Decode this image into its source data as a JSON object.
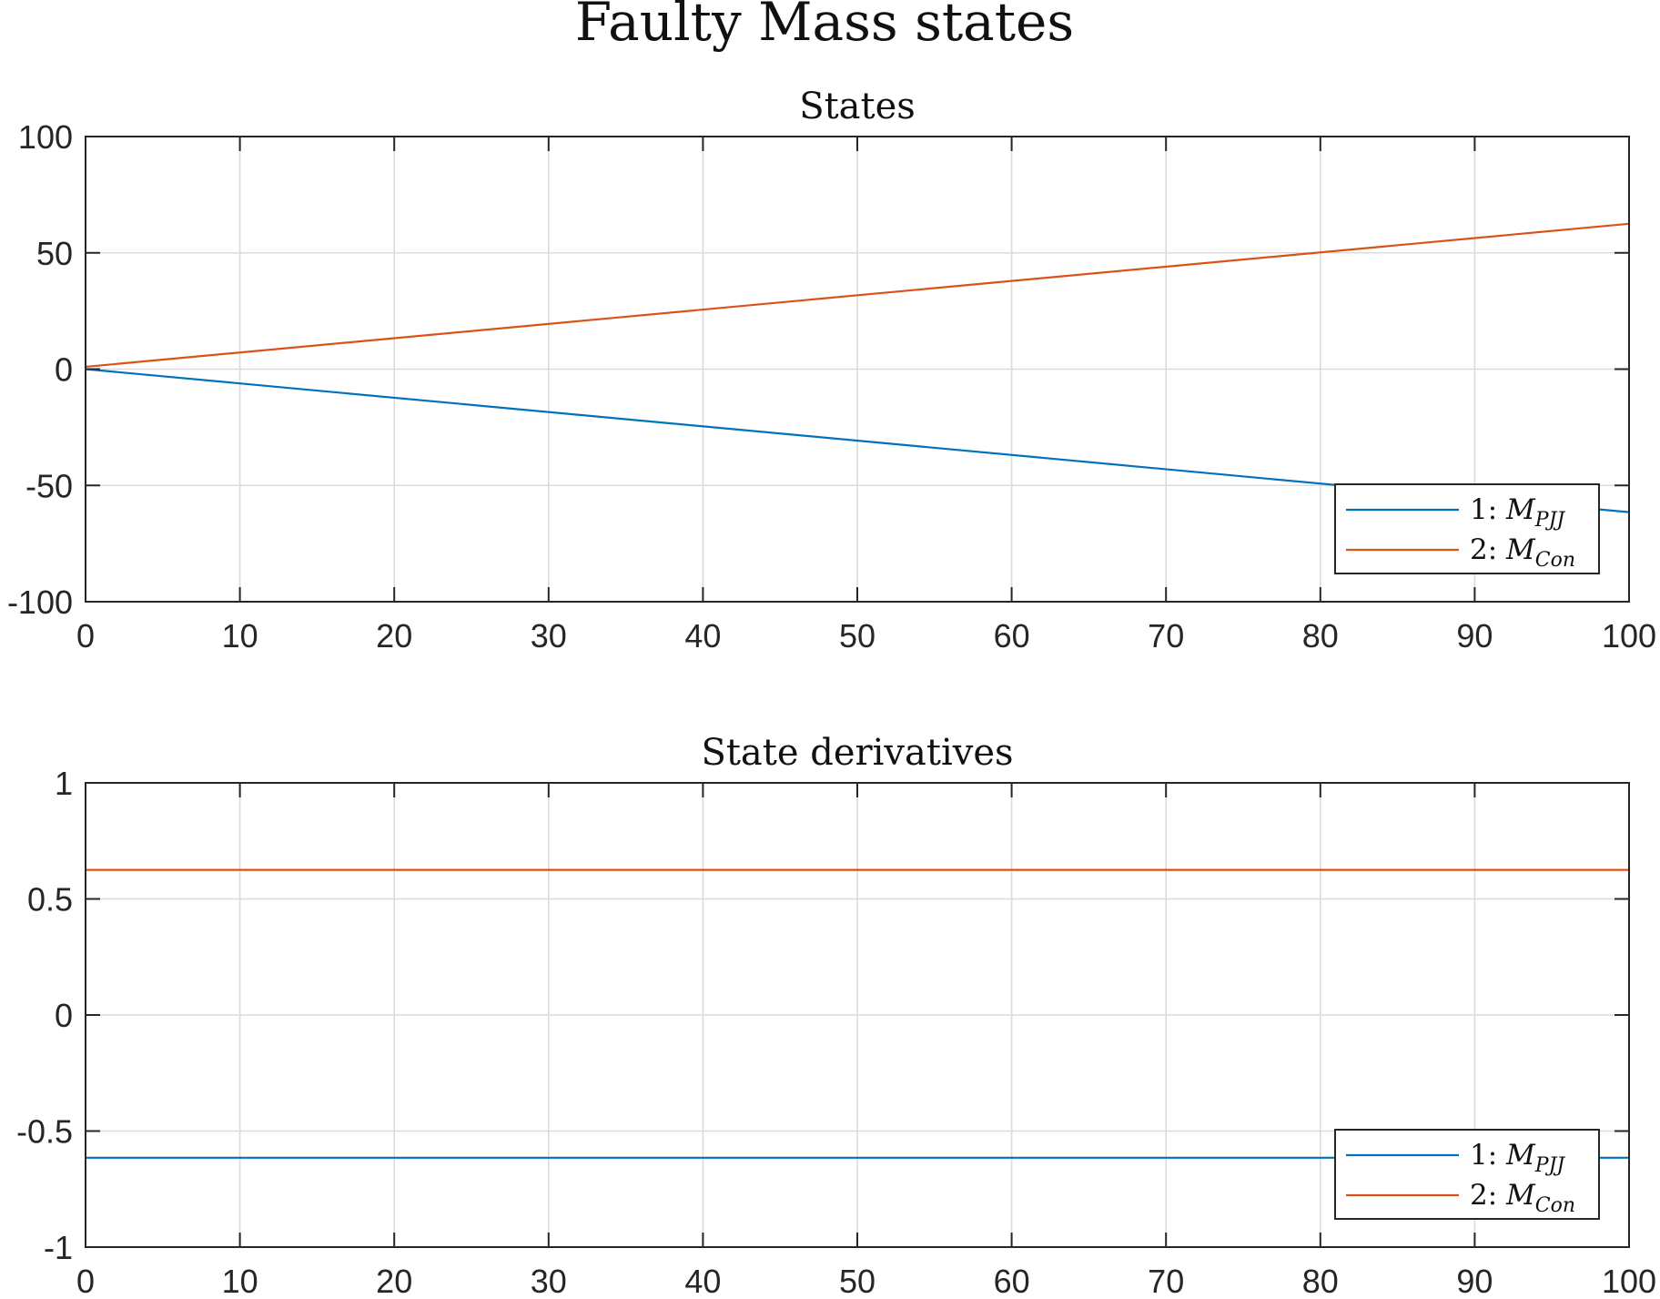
{
  "figure_title": "Faulty Mass states",
  "colors": {
    "series1": "#0072BD",
    "series2": "#D95319"
  },
  "chart_data": [
    {
      "type": "line",
      "title": "States",
      "xlabel": "",
      "ylabel": "",
      "xlim": [
        0,
        100
      ],
      "ylim": [
        -100,
        100
      ],
      "xticks": [
        0,
        10,
        20,
        30,
        40,
        50,
        60,
        70,
        80,
        90,
        100
      ],
      "yticks": [
        -100,
        -50,
        0,
        50,
        100
      ],
      "xtick_labels": [
        "0",
        "10",
        "20",
        "30",
        "40",
        "50",
        "60",
        "70",
        "80",
        "90",
        "100"
      ],
      "ytick_labels": [
        "-100",
        "-50",
        "0",
        "50",
        "100"
      ],
      "grid": true,
      "legend_position": "bottom-right",
      "series": [
        {
          "legend_prefix": "1:",
          "legend_symbol": "M",
          "legend_sub": "PJJ",
          "color": "#0072BD",
          "x": [
            0,
            100
          ],
          "y": [
            0,
            -61.5
          ]
        },
        {
          "legend_prefix": "2:",
          "legend_symbol": "M",
          "legend_sub": "Con",
          "color": "#D95319",
          "x": [
            0,
            100
          ],
          "y": [
            1,
            62.5
          ]
        }
      ]
    },
    {
      "type": "line",
      "title": "State derivatives",
      "xlabel": "",
      "ylabel": "",
      "xlim": [
        0,
        100
      ],
      "ylim": [
        -1,
        1
      ],
      "xticks": [
        0,
        10,
        20,
        30,
        40,
        50,
        60,
        70,
        80,
        90,
        100
      ],
      "yticks": [
        -1,
        -0.5,
        0,
        0.5,
        1
      ],
      "xtick_labels": [
        "0",
        "10",
        "20",
        "30",
        "40",
        "50",
        "60",
        "70",
        "80",
        "90",
        "100"
      ],
      "ytick_labels": [
        "-1",
        "-0.5",
        "0",
        "0.5",
        "1"
      ],
      "grid": true,
      "legend_position": "bottom-right",
      "series": [
        {
          "legend_prefix": "1:",
          "legend_symbol": "M",
          "legend_sub": "PJJ",
          "color": "#0072BD",
          "x": [
            0,
            100
          ],
          "y": [
            -0.615,
            -0.615
          ]
        },
        {
          "legend_prefix": "2:",
          "legend_symbol": "M",
          "legend_sub": "Con",
          "color": "#D95319",
          "x": [
            0,
            100
          ],
          "y": [
            0.625,
            0.625
          ]
        }
      ]
    }
  ]
}
